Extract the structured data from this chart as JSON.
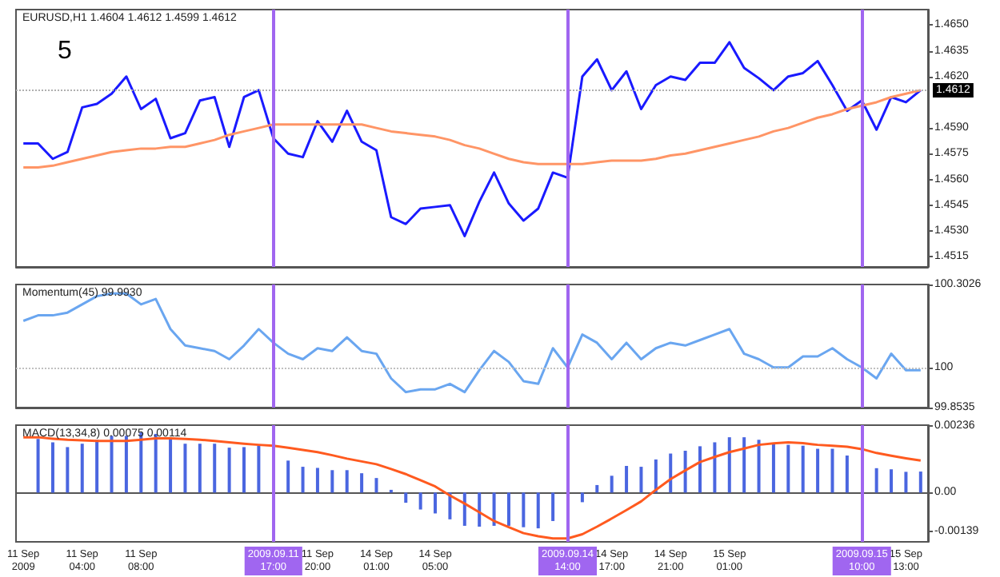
{
  "chart_data": [
    {
      "type": "line",
      "title": "EURUSD,H1 1.4604 1.4612 1.4599 1.4612",
      "annotations": [
        "5"
      ],
      "marker": "none",
      "tick_labels": "y",
      "categories": [
        "11 Sep 2009",
        null,
        null,
        null,
        "11 Sep 04:00",
        null,
        null,
        null,
        "11 Sep 08:00",
        null,
        null,
        null,
        null,
        null,
        null,
        null,
        null,
        "2009.09.11 17:00",
        null,
        null,
        "11 Sep 20:00",
        null,
        null,
        null,
        "14 Sep 01:00",
        null,
        null,
        null,
        "14 Sep 05:00",
        null,
        null,
        null,
        null,
        null,
        null,
        null,
        null,
        "2009.09.14 14:00",
        null,
        null,
        "14 Sep 17:00",
        null,
        null,
        null,
        "14 Sep 21:00",
        null,
        null,
        null,
        "15 Sep 01:00",
        null,
        null,
        null,
        null,
        null,
        null,
        null,
        null,
        "2009.09.15 10:00",
        null,
        null,
        "15 Sep 13:00",
        null
      ],
      "series": [
        {
          "color": "#1a1aff",
          "values": [
            1.4581,
            1.4581,
            1.4572,
            1.4576,
            1.4602,
            1.4604,
            1.461,
            1.462,
            1.4601,
            1.4607,
            1.4584,
            1.4587,
            1.4606,
            1.4608,
            1.4579,
            1.4608,
            1.4612,
            1.4584,
            1.4575,
            1.4573,
            1.4594,
            1.4582,
            1.46,
            1.4582,
            1.4577,
            1.4538,
            1.4534,
            1.4543,
            1.4544,
            1.4545,
            1.4527,
            1.4547,
            1.4564,
            1.4546,
            1.4536,
            1.4543,
            1.4564,
            1.4561,
            1.462,
            1.463,
            1.4612,
            1.4623,
            1.4601,
            1.4615,
            1.462,
            1.4618,
            1.4628,
            1.4628,
            1.464,
            1.4625,
            1.4619,
            1.4612,
            1.462,
            1.4622,
            1.4629,
            1.4615,
            1.46,
            1.4606,
            1.4589,
            1.4608,
            1.4605,
            1.4612
          ]
        },
        {
          "color": "#ff9566",
          "values": [
            1.4567,
            1.4567,
            1.4568,
            1.457,
            1.4572,
            1.4574,
            1.4576,
            1.4577,
            1.4578,
            1.4578,
            1.4579,
            1.4579,
            1.4581,
            1.4583,
            1.4586,
            1.4588,
            1.459,
            1.4592,
            1.4592,
            1.4592,
            1.4592,
            1.4592,
            1.4592,
            1.4592,
            1.459,
            1.4588,
            1.4587,
            1.4586,
            1.4585,
            1.4583,
            1.458,
            1.4578,
            1.4575,
            1.4572,
            1.457,
            1.4569,
            1.4569,
            1.4569,
            1.4569,
            1.457,
            1.4571,
            1.4571,
            1.4571,
            1.4572,
            1.4574,
            1.4575,
            1.4577,
            1.4579,
            1.4581,
            1.4583,
            1.4585,
            1.4588,
            1.459,
            1.4593,
            1.4596,
            1.4598,
            1.4601,
            1.4603,
            1.4605,
            1.4608,
            1.461,
            1.4612
          ]
        }
      ],
      "ylim": [
        1.4509,
        1.4659
      ],
      "yticks": [
        {
          "value": 1.4515,
          "label": "1.4515"
        },
        {
          "value": 1.453,
          "label": "1.4530"
        },
        {
          "value": 1.4545,
          "label": "1.4545"
        },
        {
          "value": 1.456,
          "label": "1.4560"
        },
        {
          "value": 1.4575,
          "label": "1.4575"
        },
        {
          "value": 1.459,
          "label": "1.4590"
        },
        {
          "value": 1.462,
          "label": "1.4620"
        },
        {
          "value": 1.4635,
          "label": "1.4635"
        },
        {
          "value": 1.465,
          "label": "1.4650"
        }
      ],
      "ref_lines": [
        {
          "axis": "y",
          "value": 1.4612,
          "label": "1.4612",
          "color": "#b0b0b0",
          "line_style": "dotted"
        },
        {
          "axis": "x",
          "value": "2009.09.11 17:00",
          "label": null,
          "color": "#a066f0"
        },
        {
          "axis": "x",
          "value": "2009.09.14 14:00",
          "label": null,
          "color": "#a066f0"
        },
        {
          "axis": "x",
          "value": "2009.09.15 10:00",
          "label": null,
          "color": "#a066f0"
        }
      ]
    },
    {
      "type": "line",
      "title": "Momentum(45) 99.9930",
      "marker": "none",
      "tick_labels": "y",
      "categories": [
        "11 Sep 2009",
        null,
        null,
        null,
        "11 Sep 04:00",
        null,
        null,
        null,
        "11 Sep 08:00",
        null,
        null,
        null,
        null,
        null,
        null,
        null,
        null,
        "2009.09.11 17:00",
        null,
        null,
        "11 Sep 20:00",
        null,
        null,
        null,
        "14 Sep 01:00",
        null,
        null,
        null,
        "14 Sep 05:00",
        null,
        null,
        null,
        null,
        null,
        null,
        null,
        null,
        "2009.09.14 14:00",
        null,
        null,
        "14 Sep 17:00",
        null,
        null,
        null,
        "14 Sep 21:00",
        null,
        null,
        null,
        "15 Sep 01:00",
        null,
        null,
        null,
        null,
        null,
        null,
        null,
        null,
        "2009.09.15 10:00",
        null,
        null,
        "15 Sep 13:00",
        null
      ],
      "series": [
        {
          "color": "#6aa6f0",
          "values": [
            100.17,
            100.19,
            100.19,
            100.2,
            100.23,
            100.26,
            100.27,
            100.27,
            100.23,
            100.25,
            100.14,
            100.08,
            100.07,
            100.06,
            100.03,
            100.08,
            100.14,
            100.09,
            100.05,
            100.03,
            100.07,
            100.06,
            100.11,
            100.06,
            100.05,
            99.96,
            99.91,
            99.92,
            99.92,
            99.94,
            99.91,
            99.99,
            100.06,
            100.02,
            99.95,
            99.94,
            100.07,
            100.0,
            100.12,
            100.09,
            100.03,
            100.09,
            100.03,
            100.07,
            100.09,
            100.08,
            100.1,
            100.12,
            100.14,
            100.05,
            100.03,
            100.0,
            100.0,
            100.04,
            100.04,
            100.07,
            100.03,
            100.0,
            99.96,
            100.05,
            99.99,
            99.99
          ]
        }
      ],
      "ylim": [
        99.8535,
        100.3026
      ],
      "yticks": [
        {
          "value": 99.8535,
          "label": "99.8535"
        },
        100,
        {
          "value": 100.3026,
          "label": "100.3026"
        }
      ],
      "ref_lines": [
        {
          "axis": "y",
          "value": 100,
          "label": null,
          "color": "#c0c0c0",
          "line_style": "dotted"
        },
        {
          "axis": "x",
          "value": "2009.09.11 17:00",
          "label": null,
          "color": "#a066f0"
        },
        {
          "axis": "x",
          "value": "2009.09.14 14:00",
          "label": null,
          "color": "#a066f0"
        },
        {
          "axis": "x",
          "value": "2009.09.15 10:00",
          "label": null,
          "color": "#a066f0"
        }
      ]
    },
    {
      "type": "bar",
      "title": "MACD(13,34,8) 0.00075 0.00114",
      "marker": "none",
      "categories": [
        "11 Sep 2009",
        null,
        null,
        null,
        "11 Sep 04:00",
        null,
        null,
        null,
        "11 Sep 08:00",
        null,
        null,
        null,
        null,
        null,
        null,
        null,
        null,
        "2009.09.11 17:00",
        null,
        null,
        "11 Sep 20:00",
        null,
        null,
        null,
        "14 Sep 01:00",
        null,
        null,
        null,
        "14 Sep 05:00",
        null,
        null,
        null,
        null,
        null,
        null,
        null,
        null,
        "2009.09.14 14:00",
        null,
        null,
        "14 Sep 17:00",
        null,
        null,
        null,
        "14 Sep 21:00",
        null,
        null,
        null,
        "15 Sep 01:00",
        null,
        null,
        null,
        null,
        null,
        null,
        null,
        null,
        "2009.09.15 10:00",
        null,
        null,
        "15 Sep 13:00",
        null
      ],
      "series": [
        {
          "color": "#4a66e0",
          "values": [
            null,
            0.00191,
            0.00179,
            0.00162,
            0.00174,
            0.00188,
            0.00202,
            0.00202,
            0.00214,
            0.00209,
            0.00191,
            0.00174,
            0.00174,
            0.00174,
            0.0016,
            0.00162,
            0.00167,
            null,
            0.00114,
            0.00092,
            0.00088,
            0.0008,
            0.0008,
            0.00069,
            0.00052,
            0.0001,
            -0.00036,
            -0.0006,
            -0.00074,
            -0.00095,
            -0.00118,
            -0.00121,
            -0.00118,
            -0.00118,
            -0.00123,
            -0.00127,
            -0.00101,
            null,
            -0.00034,
            0.00027,
            0.0006,
            0.00095,
            0.00092,
            0.00118,
            0.00139,
            0.00149,
            0.00165,
            0.00179,
            0.00197,
            0.00197,
            0.00188,
            0.00174,
            0.0017,
            0.00167,
            0.00156,
            0.00156,
            0.00132,
            null,
            0.00087,
            0.00083,
            0.00074,
            0.00075
          ]
        },
        {
          "type": "line",
          "color": "#ff5a1f",
          "values": [
            0.00197,
            0.00197,
            0.00192,
            0.00188,
            0.00186,
            0.00184,
            0.00184,
            0.00184,
            0.00188,
            0.00193,
            0.00193,
            0.00191,
            0.00188,
            0.00184,
            0.00179,
            0.00174,
            0.0017,
            0.00167,
            0.0016,
            0.00152,
            0.00144,
            0.00133,
            0.00121,
            0.00111,
            0.00101,
            0.00084,
            0.00066,
            0.00044,
            0.00022,
            -0.0001,
            -0.00039,
            -0.0007,
            -0.00101,
            -0.00123,
            -0.00144,
            -0.00155,
            -0.00163,
            -0.00163,
            -0.00148,
            -0.00121,
            -0.00092,
            -0.00062,
            -0.00031,
            0.0001,
            0.00048,
            0.00079,
            0.00109,
            0.00127,
            0.00144,
            0.00157,
            0.0017,
            0.00175,
            0.00179,
            0.00176,
            0.0017,
            0.00167,
            0.00163,
            0.00155,
            0.00141,
            0.00131,
            0.00122,
            0.00114
          ]
        }
      ],
      "ylim": [
        -0.00175,
        0.0024
      ],
      "yticks": [
        {
          "value": -0.00139,
          "label": "-0.00139"
        },
        {
          "value": 0,
          "label": "0.00"
        },
        {
          "value": 0.00236,
          "label": "0.00236"
        }
      ],
      "ref_lines": [
        {
          "axis": "x",
          "value": "2009.09.11 17:00",
          "label": null,
          "color": "#a066f0"
        },
        {
          "axis": "x",
          "value": "2009.09.14 14:00",
          "label": null,
          "color": "#a066f0"
        },
        {
          "axis": "x",
          "value": "2009.09.15 10:00",
          "label": null,
          "color": "#a066f0"
        }
      ]
    }
  ]
}
